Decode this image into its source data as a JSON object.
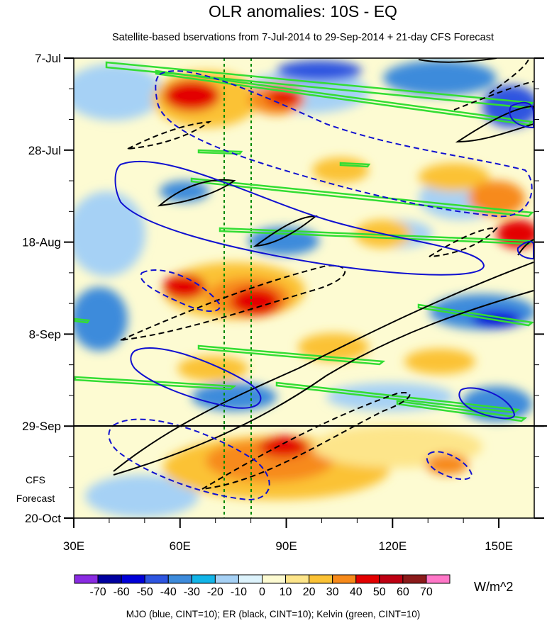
{
  "chart_data": {
    "type": "heatmap",
    "title": "OLR anomalies: 10S - EQ",
    "subtitle": "Satellite-based bservations from 7-Jul-2014 to 29-Sep-2014 + 21-day CFS Forecast",
    "x_axis": {
      "range_deg_east": [
        30,
        160
      ],
      "ticks": [
        {
          "value": 30,
          "label": "30E"
        },
        {
          "value": 60,
          "label": "60E"
        },
        {
          "value": 90,
          "label": "90E"
        },
        {
          "value": 120,
          "label": "120E"
        },
        {
          "value": 150,
          "label": "150E"
        }
      ]
    },
    "y_axis": {
      "range_days_since_7_jul": [
        0,
        105
      ],
      "ticks": [
        {
          "day": 0,
          "label": "7-Jul"
        },
        {
          "day": 21,
          "label": "28-Jul"
        },
        {
          "day": 42,
          "label": "18-Aug"
        },
        {
          "day": 63,
          "label": "8-Sep"
        },
        {
          "day": 84,
          "label": "29-Sep"
        },
        {
          "day": 105,
          "label": "20-Oct"
        }
      ]
    },
    "forecast_start_day": 84,
    "forecast_label": [
      "CFS",
      "Forecast"
    ],
    "reference_lines_deg_east": [
      73,
      80
    ],
    "colorbar": {
      "unit": "W/m^2",
      "labels": [
        "-70",
        "-60",
        "-50",
        "-40",
        "-30",
        "-20",
        "-10",
        "0",
        "10",
        "20",
        "30",
        "40",
        "50",
        "60",
        "70"
      ],
      "colors": [
        "#8a2be2",
        "#0000a0",
        "#0000d8",
        "#2e55e0",
        "#3d8bdb",
        "#12b5e8",
        "#a6d1f5",
        "#ddf3fc",
        "#fdfbd2",
        "#fde58a",
        "#fbc235",
        "#f78a1a",
        "#e30000",
        "#be0012",
        "#8b1a1a",
        "#ff77c8"
      ]
    },
    "contours": {
      "mjo_color": "#1010d0",
      "er_color": "#000000",
      "kelvin_color": "#33dd33"
    },
    "footer": "MJO (blue, CINT=10); ER (black, CINT=10); Kelvin (green, CINT=10)"
  }
}
